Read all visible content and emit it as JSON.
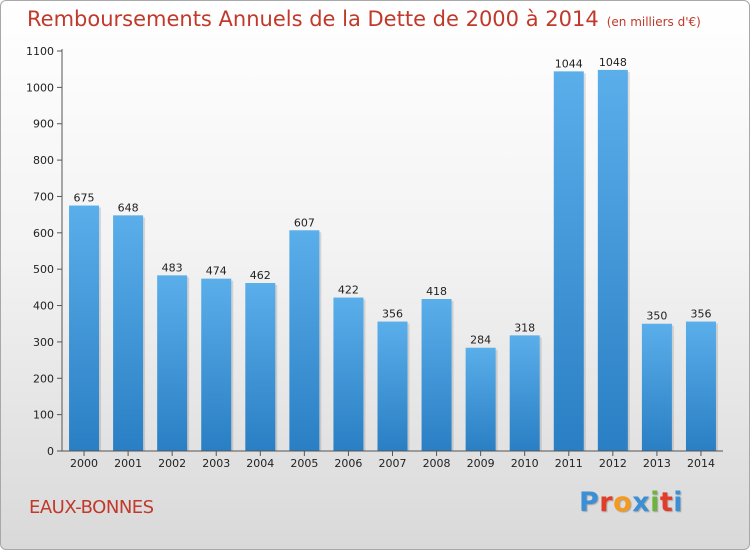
{
  "page": {
    "title": "Remboursements Annuels de la Dette de 2000 à 2014",
    "subtitle": "(en milliers d'€)",
    "place": "EAUX-BONNES",
    "logo_text": "Proxiti",
    "logo_colors": [
      "#3a8fd6",
      "#e23d28",
      "#f39a1f",
      "#3a8fd6",
      "#6cb33f",
      "#e23d28",
      "#3a8fd6"
    ],
    "title_color": "#c0392b"
  },
  "chart_data": {
    "type": "bar",
    "title": "Remboursements Annuels de la Dette de 2000 à 2014",
    "subtitle": "(en milliers d'€)",
    "xlabel": "",
    "ylabel": "",
    "categories": [
      "2000",
      "2001",
      "2002",
      "2003",
      "2004",
      "2005",
      "2006",
      "2007",
      "2008",
      "2009",
      "2010",
      "2011",
      "2012",
      "2013",
      "2014"
    ],
    "values": [
      675,
      648,
      483,
      474,
      462,
      607,
      422,
      356,
      418,
      284,
      318,
      1044,
      1048,
      350,
      356
    ],
    "ylim": [
      0,
      1100
    ],
    "yticks": [
      0,
      100,
      200,
      300,
      400,
      500,
      600,
      700,
      800,
      900,
      1000,
      1100
    ],
    "grid": false,
    "bar_color_top": "#5aaeea",
    "bar_color_bottom": "#2a7fc4"
  }
}
